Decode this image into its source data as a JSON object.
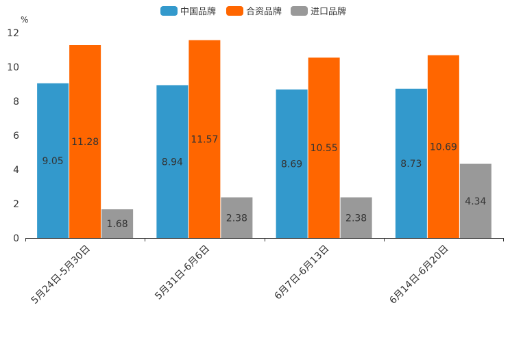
{
  "chart_data": {
    "type": "bar",
    "title": "",
    "xlabel": "",
    "ylabel": "%",
    "ylim": [
      0,
      12
    ],
    "yticks": [
      0,
      2,
      4,
      6,
      8,
      10,
      12
    ],
    "categories": [
      "5月24日-5月30日",
      "5月31日-6月6日",
      "6月7日-6月13日",
      "6月14日-6月20日"
    ],
    "series": [
      {
        "name": "中国品牌",
        "color": "#3399cc",
        "values": [
          9.05,
          8.94,
          8.69,
          8.73
        ]
      },
      {
        "name": "合资品牌",
        "color": "#ff6600",
        "values": [
          11.28,
          11.57,
          10.55,
          10.69
        ]
      },
      {
        "name": "进口品牌",
        "color": "#999999",
        "values": [
          1.68,
          2.38,
          2.38,
          4.34
        ]
      }
    ],
    "legend_position": "top-center",
    "grid": false
  }
}
